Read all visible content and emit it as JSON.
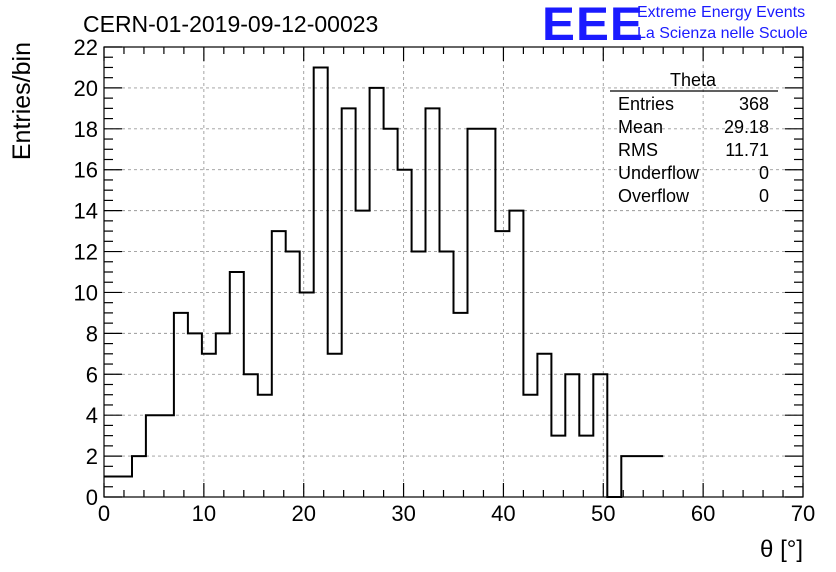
{
  "header": {
    "run_title": "CERN-01-2019-09-12-00023",
    "logo_text": "EEE",
    "logo_line1": "Extreme Energy Events",
    "logo_line2": "La Scienza nelle Scuole",
    "logo_color": "#1a1aff"
  },
  "stats_box": {
    "title": "Theta",
    "rows": [
      {
        "label": "Entries",
        "value": "368"
      },
      {
        "label": "Mean",
        "value": "29.18"
      },
      {
        "label": "RMS",
        "value": "11.71"
      },
      {
        "label": "Underflow",
        "value": "0"
      },
      {
        "label": "Overflow",
        "value": "0"
      }
    ]
  },
  "chart_data": {
    "type": "bar",
    "style": "step-histogram",
    "xlabel": "θ [°]",
    "ylabel": "Entries/bin",
    "xlim": [
      0,
      70
    ],
    "ylim": [
      0,
      22
    ],
    "x_ticks": [
      0,
      10,
      20,
      30,
      40,
      50,
      60,
      70
    ],
    "y_ticks": [
      0,
      2,
      4,
      6,
      8,
      10,
      12,
      14,
      16,
      18,
      20,
      22
    ],
    "grid": true,
    "bin_width": 1.4,
    "bin_edges_start": 1.4,
    "values": [
      1,
      1,
      2,
      4,
      4,
      9,
      8,
      7,
      8,
      11,
      6,
      5,
      13,
      12,
      10,
      21,
      7,
      19,
      14,
      20,
      18,
      16,
      12,
      19,
      12,
      9,
      18,
      18,
      13,
      14,
      5,
      7,
      3,
      6,
      3,
      6,
      0,
      2,
      2,
      2
    ],
    "line_color": "#000000"
  }
}
